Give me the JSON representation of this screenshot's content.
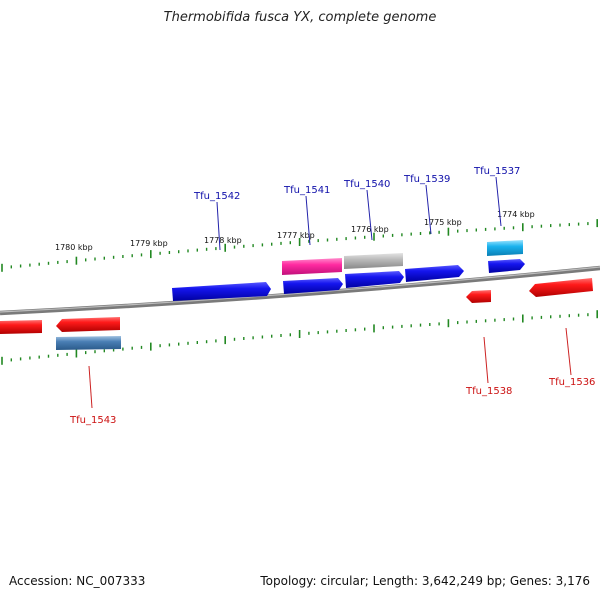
{
  "title": "Thermobifida fusca YX, complete genome",
  "footer": {
    "accession": "Accession: NC_007333",
    "topology": "Topology: circular; Length: 3,642,249 bp; Genes: 3,176"
  },
  "colors": {
    "forward_cds": "#1010dd",
    "reverse_cds": "#ee1111",
    "forward_label": "#1010aa",
    "reverse_label": "#cc1111",
    "ruler_ticks": "#228822",
    "backbone": "#888888"
  },
  "scale_labels": [
    "1780 kbp",
    "1779 kbp",
    "1778 kbp",
    "1777 kbp",
    "1776 kbp",
    "1775 kbp",
    "1774 kbp"
  ],
  "forward_genes": [
    "Tfu_1542",
    "Tfu_1541",
    "Tfu_1540",
    "Tfu_1539",
    "Tfu_1537"
  ],
  "reverse_genes": [
    "Tfu_1543",
    "Tfu_1538",
    "Tfu_1536"
  ]
}
